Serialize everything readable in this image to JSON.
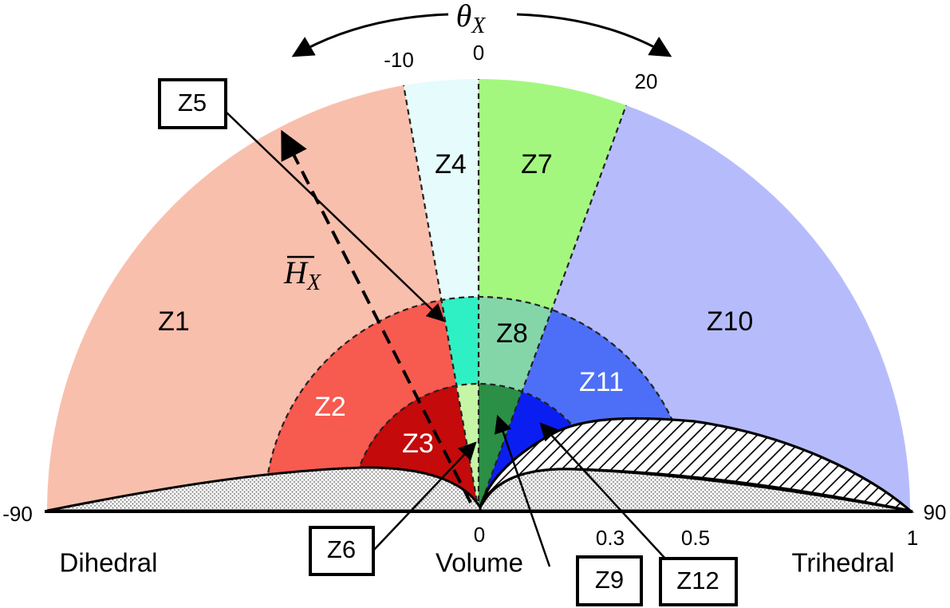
{
  "theta_symbol": "θ",
  "theta_sub": "X",
  "h_symbol": "H",
  "h_sub": "X",
  "angle_ticks": {
    "neg90": "-90",
    "neg10": "-10",
    "zero": "0",
    "twenty": "20",
    "ninety": "90"
  },
  "scale_ticks": {
    "zero": "0",
    "p03": "0.3",
    "p05": "0.5",
    "one": "1"
  },
  "axis_words": {
    "left": "Dihedral",
    "center": "Volume",
    "right": "Trihedral"
  },
  "zones": {
    "z1": "Z1",
    "z2": "Z2",
    "z3": "Z3",
    "z4": "Z4",
    "z7": "Z7",
    "z8": "Z8",
    "z10": "Z10",
    "z11": "Z11"
  },
  "callouts": {
    "z5": "Z5",
    "z6": "Z6",
    "z9": "Z9",
    "z12": "Z12"
  },
  "colors": {
    "z1": "#f9bfad",
    "z2": "#f75a4f",
    "z3": "#c40a0a",
    "z4": "#e6fbfb",
    "z5": "#2ef0c4",
    "z6": "#c6f5a6",
    "z7": "#a3f77e",
    "z8": "#84d6a9",
    "z9": "#2b8f45",
    "z10": "#b6bcfb",
    "z11": "#4d6ff7",
    "z12": "#0b1ef2"
  }
}
